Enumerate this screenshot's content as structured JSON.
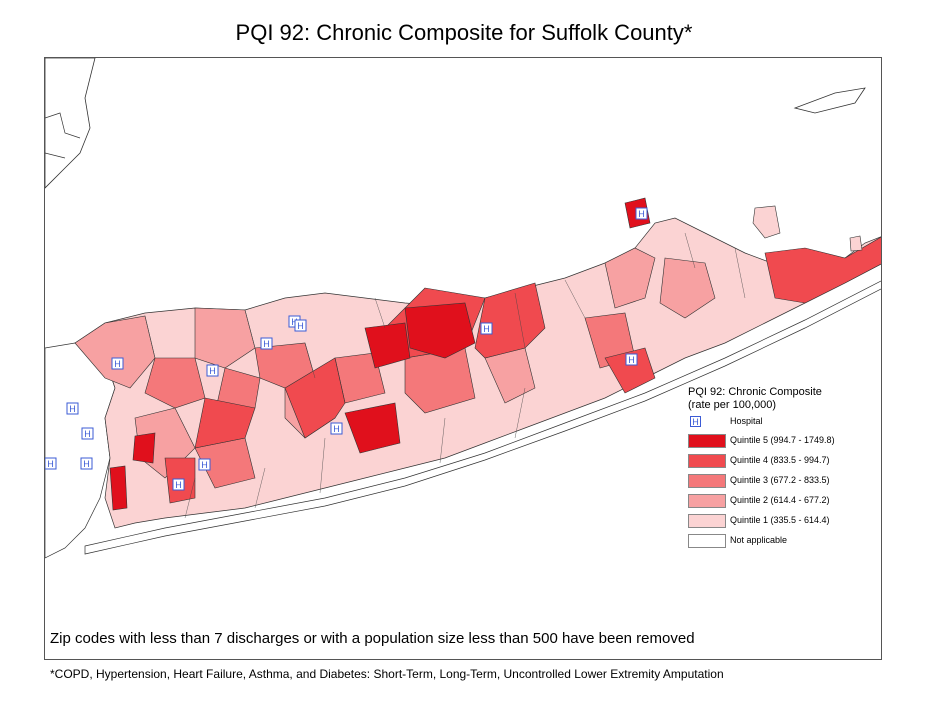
{
  "title": "PQI 92: Chronic Composite for Suffolk County*",
  "legend": {
    "title_line1": "PQI 92: Chronic Composite",
    "title_line2": "(rate per 100,000)",
    "hospital_label": "Hospital",
    "hospital_icon_glyph": "H",
    "items": [
      {
        "label": "Quintile 5 (994.7 - 1749.8)",
        "color": "#e0101c"
      },
      {
        "label": "Quintile 4 (833.5 - 994.7)",
        "color": "#f04a4f"
      },
      {
        "label": "Quintile 3 (677.2 - 833.5)",
        "color": "#f4787a"
      },
      {
        "label": "Quintile 2 (614.4 - 677.2)",
        "color": "#f7a1a2"
      },
      {
        "label": "Quintile 1 (335.5 - 614.4)",
        "color": "#fbd3d3"
      },
      {
        "label": "Not applicable",
        "color": "#ffffff"
      }
    ]
  },
  "note": "Zip codes with less than 7 discharges or with a population size less than 500 have been removed",
  "footnote": "*COPD, Hypertension, Heart Failure, Asthma, and Diabetes: Short-Term, Long-Term, Uncontrolled Lower Extremity Amputation",
  "map": {
    "hospital_count": 15
  }
}
